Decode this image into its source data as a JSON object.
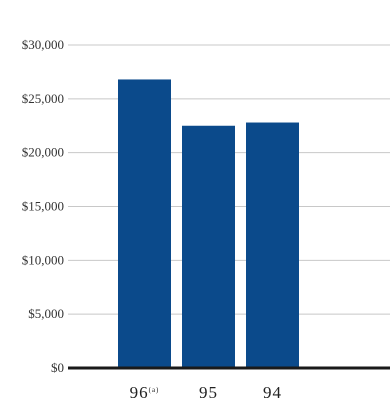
{
  "chart_data": {
    "type": "bar",
    "categories": [
      "96",
      "95",
      "94"
    ],
    "category_notes": [
      "(a)",
      "",
      ""
    ],
    "values": [
      26800,
      22500,
      22800
    ],
    "ylim": [
      0,
      30000
    ],
    "yticks": [
      0,
      5000,
      10000,
      15000,
      20000,
      25000,
      30000
    ],
    "ytick_labels": [
      "$0",
      "$5,000",
      "$10,000",
      "$15,000",
      "$20,000",
      "$25,000",
      "$30,000"
    ],
    "title": "",
    "xlabel": "",
    "ylabel": "",
    "grid": true,
    "colors": {
      "bar": "#0b4a8b",
      "grid": "#c8c8c8",
      "baseline": "#1a1a1a"
    }
  }
}
